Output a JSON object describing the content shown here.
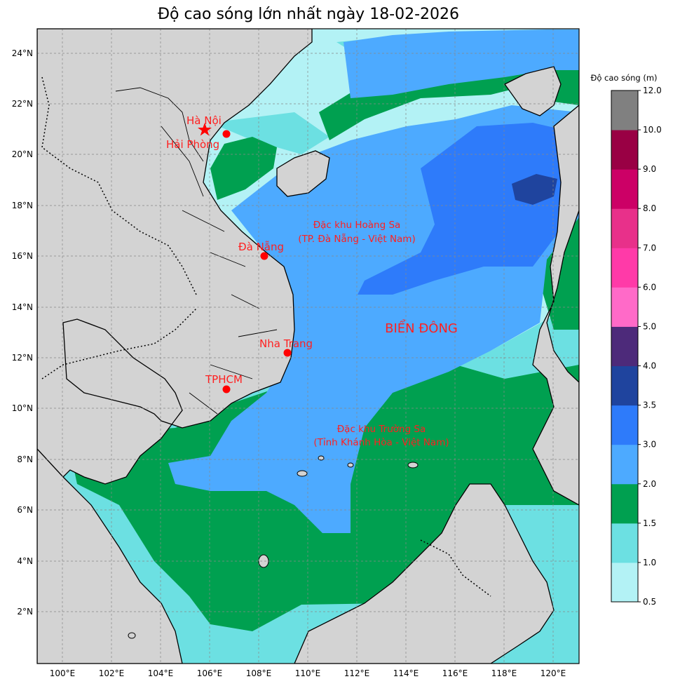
{
  "title": "Độ cao sóng lớn nhất ngày 18-02-2026",
  "lat_ticks": [
    "24°N",
    "22°N",
    "20°N",
    "18°N",
    "16°N",
    "14°N",
    "12°N",
    "10°N",
    "8°N",
    "6°N",
    "4°N",
    "2°N"
  ],
  "lon_ticks": [
    "100°E",
    "102°E",
    "104°E",
    "106°E",
    "108°E",
    "110°E",
    "112°E",
    "114°E",
    "116°E",
    "118°E",
    "120°E"
  ],
  "cities": [
    {
      "name": "Hà Nội",
      "marker": "star"
    },
    {
      "name": "Hải Phòng",
      "marker": "dot"
    },
    {
      "name": "Đà Nẵng",
      "marker": "dot"
    },
    {
      "name": "Nha Trang",
      "marker": "dot"
    },
    {
      "name": "TPHCM",
      "marker": "dot"
    }
  ],
  "zones": {
    "hoang_sa": [
      "Đặc khu Hoàng Sa",
      "(TP. Đà Nẵng - Việt Nam)"
    ],
    "truong_sa": [
      "Đặc khu Trường Sa",
      "(Tỉnh Khánh Hòa - Việt Nam)"
    ]
  },
  "sea_label": "BIỂN ĐÔNG",
  "colorbar": {
    "title": "Độ cao sóng (m)",
    "levels": [
      "0.5",
      "1.0",
      "1.5",
      "2.0",
      "3.0",
      "3.5",
      "4.0",
      "5.0",
      "6.0",
      "7.0",
      "8.0",
      "9.0",
      "10.0",
      "12.0"
    ],
    "colors": [
      "#b3f2f5",
      "#6ce0e2",
      "#00a050",
      "#4daaff",
      "#2e7bfa",
      "#1f449e",
      "#4d2a7a",
      "#ff6ac8",
      "#ff3aa8",
      "#e8308a",
      "#cc0066",
      "#990044",
      "#808080"
    ]
  },
  "palette": {
    "land": "#d3d3d3",
    "label_red": "#ff2020"
  }
}
